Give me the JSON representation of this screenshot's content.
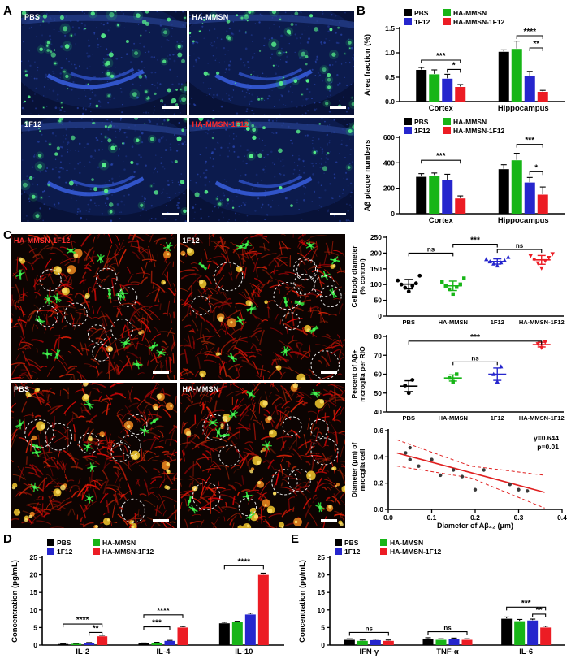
{
  "groups": [
    {
      "name": "PBS",
      "color": "#000000",
      "marker": "circle"
    },
    {
      "name": "HA-MMSN",
      "color": "#17b517",
      "marker": "square"
    },
    {
      "name": "1F12",
      "color": "#2626cd",
      "marker": "triangle"
    },
    {
      "name": "HA-MMSN-1F12",
      "color": "#ec1c24",
      "marker": "triangle-down"
    }
  ],
  "panel_a": {
    "label": "A",
    "images": [
      {
        "label": "PBS",
        "color": "#ffffff",
        "plaques": 75,
        "seed": 11
      },
      {
        "label": "HA-MMSN",
        "color": "#ffffff",
        "plaques": 60,
        "seed": 22
      },
      {
        "label": "1F12",
        "color": "#ffffff",
        "plaques": 55,
        "seed": 33
      },
      {
        "label": "HA-MMSN-1F12",
        "color": "#ff2a2a",
        "plaques": 30,
        "seed": 44
      }
    ]
  },
  "panel_b": {
    "label": "B"
  },
  "panel_c": {
    "label": "C",
    "images": [
      {
        "label": "HA-MMSN-1F12",
        "color": "#ff3030",
        "circles": 8,
        "glia": 16,
        "yellow": 10,
        "seed": 101
      },
      {
        "label": "1F12",
        "color": "#ffffff",
        "circles": 10,
        "glia": 14,
        "yellow": 14,
        "seed": 202
      },
      {
        "label": "PBS",
        "color": "#ffffff",
        "circles": 7,
        "glia": 10,
        "yellow": 26,
        "seed": 303
      },
      {
        "label": "HA-MMSN",
        "color": "#ffffff",
        "circles": 9,
        "glia": 12,
        "yellow": 28,
        "seed": 404
      }
    ]
  },
  "panel_d": {
    "label": "D"
  },
  "panel_e": {
    "label": "E"
  },
  "chart_data": [
    {
      "id": "b1",
      "type": "bar",
      "ylabel": [
        "Area fraction (%)"
      ],
      "ylim": [
        0,
        1.5
      ],
      "yticks": [
        {
          "v": 0,
          "l": "0.0"
        },
        {
          "v": 0.5,
          "l": "0.5"
        },
        {
          "v": 1.0,
          "l": "1.0"
        },
        {
          "v": 1.5,
          "l": "1.5"
        }
      ],
      "categories": [
        "Cortex",
        "Hippocampus"
      ],
      "series": [
        {
          "name": "PBS",
          "values": [
            0.65,
            1.02
          ],
          "errors": [
            0.05,
            0.04
          ]
        },
        {
          "name": "HA-MMSN",
          "values": [
            0.56,
            1.08
          ],
          "errors": [
            0.09,
            0.16
          ]
        },
        {
          "name": "1F12",
          "values": [
            0.47,
            0.52
          ],
          "errors": [
            0.09,
            0.1
          ]
        },
        {
          "name": "HA-MMSN-1F12",
          "values": [
            0.3,
            0.2
          ],
          "errors": [
            0.05,
            0.03
          ]
        }
      ],
      "legend": true,
      "margin": {
        "l": 46,
        "r": 6,
        "t": 27,
        "b": 15
      },
      "sig": [
        {
          "cat": 0,
          "from": 0,
          "to": 3,
          "y": 0.85,
          "label": "***"
        },
        {
          "cat": 0,
          "from": 2,
          "to": 3,
          "y": 0.66,
          "label": "*"
        },
        {
          "cat": 1,
          "from": 1,
          "to": 3,
          "y": 1.35,
          "label": "****"
        },
        {
          "cat": 1,
          "from": 2,
          "to": 3,
          "y": 1.1,
          "label": "**"
        }
      ]
    },
    {
      "id": "b2",
      "type": "bar",
      "ylabel": [
        "Aβ plaque numbers"
      ],
      "ylim": [
        0,
        600
      ],
      "yticks": [
        {
          "v": 0,
          "l": "0"
        },
        {
          "v": 200,
          "l": "200"
        },
        {
          "v": 400,
          "l": "400"
        },
        {
          "v": 600,
          "l": "600"
        }
      ],
      "categories": [
        "Cortex",
        "Hippocampus"
      ],
      "series": [
        {
          "name": "PBS",
          "values": [
            290,
            350
          ],
          "errors": [
            25,
            35
          ]
        },
        {
          "name": "HA-MMSN",
          "values": [
            300,
            420
          ],
          "errors": [
            20,
            55
          ]
        },
        {
          "name": "1F12",
          "values": [
            265,
            245
          ],
          "errors": [
            45,
            40
          ]
        },
        {
          "name": "HA-MMSN-1F12",
          "values": [
            120,
            150
          ],
          "errors": [
            20,
            60
          ]
        }
      ],
      "legend": true,
      "margin": {
        "l": 46,
        "r": 6,
        "t": 27,
        "b": 15
      },
      "sig": [
        {
          "cat": 0,
          "from": 0,
          "to": 3,
          "y": 420,
          "label": "***"
        },
        {
          "cat": 1,
          "from": 1,
          "to": 3,
          "y": 545,
          "label": "***"
        },
        {
          "cat": 1,
          "from": 2,
          "to": 3,
          "y": 330,
          "label": "*"
        }
      ]
    },
    {
      "id": "c1",
      "type": "dotgroup",
      "ylabel": [
        "Cell body diameter",
        "(% control)"
      ],
      "ylim": [
        0,
        250
      ],
      "yticks": [
        {
          "v": 0,
          "l": "0"
        },
        {
          "v": 50,
          "l": "50"
        },
        {
          "v": 100,
          "l": "100"
        },
        {
          "v": 150,
          "l": "150"
        },
        {
          "v": 200,
          "l": "200"
        },
        {
          "v": 250,
          "l": "250"
        }
      ],
      "categories": [
        "PBS",
        "HA-MMSN",
        "1F12",
        "HA-MMSN-1F12"
      ],
      "points": [
        [
          78,
          90,
          96,
          100,
          104,
          113,
          128
        ],
        [
          70,
          85,
          92,
          96,
          101,
          108,
          120
        ],
        [
          160,
          166,
          170,
          173,
          176,
          180,
          187
        ],
        [
          152,
          168,
          175,
          180,
          185,
          191,
          197
        ]
      ],
      "margin": {
        "l": 46,
        "r": 8,
        "t": 8,
        "b": 13
      },
      "sig": [
        {
          "from": 0,
          "to": 1,
          "y": 200,
          "label": "ns"
        },
        {
          "from": 1,
          "to": 2,
          "y": 228,
          "label": "***"
        },
        {
          "from": 2,
          "to": 3,
          "y": 211,
          "label": "ns"
        }
      ]
    },
    {
      "id": "c2",
      "type": "dotgroup",
      "ylabel": [
        "Percent of Aβ+",
        "mcroglia per RIO"
      ],
      "ylim": [
        40,
        80
      ],
      "yticks": [
        {
          "v": 40,
          "l": "40"
        },
        {
          "v": 50,
          "l": "50"
        },
        {
          "v": 60,
          "l": "60"
        },
        {
          "v": 70,
          "l": "70"
        },
        {
          "v": 80,
          "l": "80"
        }
      ],
      "categories": [
        "PBS",
        "HA-MMSN",
        "1F12",
        "HA-MMSN-1F12"
      ],
      "points": [
        [
          50,
          54,
          57
        ],
        [
          56,
          58,
          60
        ],
        [
          56,
          60,
          64
        ],
        [
          74,
          76,
          77
        ]
      ],
      "margin": {
        "l": 46,
        "r": 8,
        "t": 10,
        "b": 13
      },
      "sig": [
        {
          "from": 1,
          "to": 2,
          "y": 66.5,
          "label": "ns"
        },
        {
          "from": 0,
          "to": 3,
          "y": 77.5,
          "label": "***"
        }
      ]
    },
    {
      "id": "c3",
      "type": "scatter",
      "xlabel": "Diameter of Aβ₄₂ (μm)",
      "ylabel": [
        "Diameter (μm) of",
        "mrocglia cell"
      ],
      "xlim": [
        0,
        0.4
      ],
      "ylim": [
        0,
        0.6
      ],
      "xticks": [
        {
          "v": 0,
          "l": "0.0"
        },
        {
          "v": 0.1,
          "l": "0.1"
        },
        {
          "v": 0.2,
          "l": "0.2"
        },
        {
          "v": 0.3,
          "l": "0.3"
        },
        {
          "v": 0.4,
          "l": "0.4"
        }
      ],
      "yticks": [
        {
          "v": 0,
          "l": "0.0"
        },
        {
          "v": 0.2,
          "l": "0.2"
        },
        {
          "v": 0.4,
          "l": "0.4"
        },
        {
          "v": 0.6,
          "l": "0.6"
        }
      ],
      "points": [
        [
          0.04,
          0.43
        ],
        [
          0.05,
          0.47
        ],
        [
          0.05,
          0.38
        ],
        [
          0.07,
          0.33
        ],
        [
          0.1,
          0.38
        ],
        [
          0.12,
          0.26
        ],
        [
          0.15,
          0.3
        ],
        [
          0.17,
          0.25
        ],
        [
          0.2,
          0.15
        ],
        [
          0.22,
          0.3
        ],
        [
          0.28,
          0.19
        ],
        [
          0.3,
          0.15
        ],
        [
          0.32,
          0.14
        ]
      ],
      "regression": {
        "x1": 0.02,
        "y1": 0.43,
        "x2": 0.36,
        "y2": 0.13,
        "color": "#e02020"
      },
      "bands": [
        [
          [
            0.02,
            0.53
          ],
          [
            0.19,
            0.33
          ],
          [
            0.36,
            0.26
          ]
        ],
        [
          [
            0.02,
            0.33
          ],
          [
            0.19,
            0.24
          ],
          [
            0.36,
            0.01
          ]
        ]
      ],
      "annotations": [
        "γ=0.644",
        "p=0.01"
      ],
      "point_color": "#3a3a3a",
      "margin": {
        "l": 48,
        "r": 10,
        "t": 8,
        "b": 26
      }
    },
    {
      "id": "d",
      "type": "bar",
      "ylabel": [
        "Concentration (pg/mL)"
      ],
      "ylim": [
        0,
        25
      ],
      "yticks": [
        {
          "v": 0,
          "l": "0"
        },
        {
          "v": 5,
          "l": "5"
        },
        {
          "v": 10,
          "l": "10"
        },
        {
          "v": 15,
          "l": "15"
        },
        {
          "v": 20,
          "l": "20"
        },
        {
          "v": 25,
          "l": "25"
        }
      ],
      "categories": [
        "IL-2",
        "IL-4",
        "IL-10"
      ],
      "series": [
        {
          "name": "PBS",
          "values": [
            0.3,
            0.5,
            6.2
          ],
          "errors": [
            0.08,
            0.1,
            0.3
          ]
        },
        {
          "name": "HA-MMSN",
          "values": [
            0.35,
            0.7,
            6.5
          ],
          "errors": [
            0.08,
            0.1,
            0.3
          ]
        },
        {
          "name": "1F12",
          "values": [
            0.6,
            1.2,
            8.7
          ],
          "errors": [
            0.12,
            0.15,
            0.4
          ]
        },
        {
          "name": "HA-MMSN-1F12",
          "values": [
            2.5,
            5.0,
            20.0
          ],
          "errors": [
            0.3,
            0.3,
            0.5
          ]
        }
      ],
      "legend": true,
      "margin": {
        "l": 40,
        "r": 6,
        "t": 26,
        "b": 16
      },
      "sig": [
        {
          "cat": 0,
          "from": 0,
          "to": 3,
          "y": 6.0,
          "label": "****"
        },
        {
          "cat": 0,
          "from": 2,
          "to": 3,
          "y": 3.6,
          "label": "**"
        },
        {
          "cat": 1,
          "from": 0,
          "to": 2,
          "y": 5.2,
          "label": "***"
        },
        {
          "cat": 1,
          "from": 0,
          "to": 3,
          "y": 8.6,
          "label": "****"
        },
        {
          "cat": 2,
          "from": 0,
          "to": 3,
          "y": 22.6,
          "label": "****"
        }
      ]
    },
    {
      "id": "e",
      "type": "bar",
      "ylabel": [
        "Concentration (pg/mL)"
      ],
      "ylim": [
        0,
        25
      ],
      "yticks": [
        {
          "v": 0,
          "l": "0"
        },
        {
          "v": 5,
          "l": "5"
        },
        {
          "v": 10,
          "l": "10"
        },
        {
          "v": 15,
          "l": "15"
        },
        {
          "v": 20,
          "l": "20"
        },
        {
          "v": 25,
          "l": "25"
        }
      ],
      "categories": [
        "IFN-γ",
        "TNF-α",
        "IL-6"
      ],
      "series": [
        {
          "name": "PBS",
          "values": [
            1.5,
            1.8,
            7.5
          ],
          "errors": [
            0.3,
            0.3,
            0.5
          ]
        },
        {
          "name": "HA-MMSN",
          "values": [
            1.2,
            1.5,
            6.8
          ],
          "errors": [
            0.25,
            0.3,
            0.5
          ]
        },
        {
          "name": "1F12",
          "values": [
            1.4,
            1.7,
            7.0
          ],
          "errors": [
            0.3,
            0.3,
            0.4
          ]
        },
        {
          "name": "HA-MMSN-1F12",
          "values": [
            1.2,
            1.5,
            5.0
          ],
          "errors": [
            0.25,
            0.3,
            0.4
          ]
        }
      ],
      "legend": true,
      "margin": {
        "l": 40,
        "r": 6,
        "t": 26,
        "b": 16
      },
      "sig": [
        {
          "cat": 0,
          "from": 0,
          "to": 3,
          "y": 3.6,
          "label": "ns"
        },
        {
          "cat": 1,
          "from": 0,
          "to": 3,
          "y": 3.8,
          "label": "ns"
        },
        {
          "cat": 2,
          "from": 0,
          "to": 3,
          "y": 10.8,
          "label": "***"
        },
        {
          "cat": 2,
          "from": 2,
          "to": 3,
          "y": 8.8,
          "label": "**"
        }
      ]
    }
  ]
}
